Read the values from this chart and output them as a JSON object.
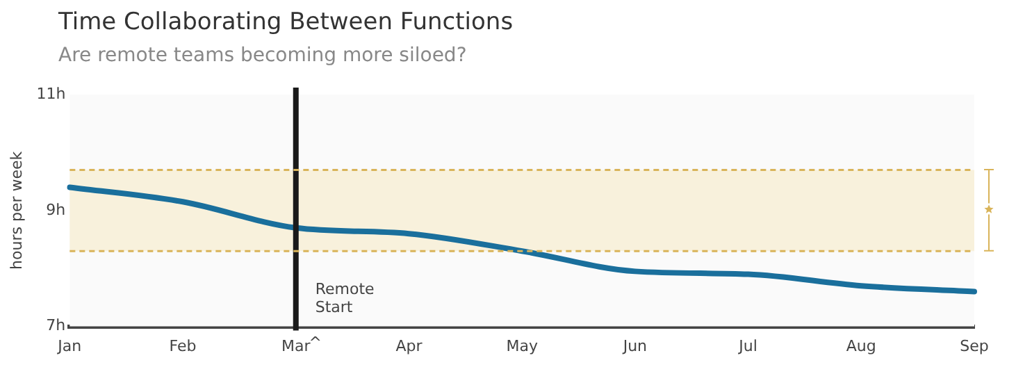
{
  "chart_data": {
    "type": "line",
    "title": "Time Collaborating Between Functions",
    "subtitle": "Are remote teams becoming more siloed?",
    "ylabel": "hours per week",
    "categories": [
      "Jan",
      "Feb",
      "Mar",
      "Apr",
      "May",
      "Jun",
      "Jul",
      "Aug",
      "Sep"
    ],
    "series": [
      {
        "color": "#1a6f9c",
        "values": [
          9.4,
          9.15,
          8.7,
          8.6,
          8.3,
          7.95,
          7.9,
          7.7,
          7.6
        ]
      }
    ],
    "ylim": [
      7,
      11
    ],
    "yticks": [
      {
        "value": 7,
        "label": "7h"
      },
      {
        "value": 9,
        "label": "9h"
      },
      {
        "value": 11,
        "label": "11h"
      }
    ],
    "ref_lines": [
      {
        "axis": "x",
        "value": "Mar",
        "label": "Remote Start",
        "color": "#1a1a1a"
      },
      {
        "axis": "y",
        "value": 8.3,
        "color": "#d9b45a",
        "line_style": "dashed"
      },
      {
        "axis": "y",
        "value": 9.7,
        "color": "#d9b45a",
        "line_style": "dashed"
      }
    ],
    "bands": [
      {
        "axis": "y",
        "from": 8.3,
        "to": 9.7,
        "color": "#f8f1dc"
      }
    ],
    "annotations": [
      "^"
    ],
    "grid": false,
    "legend": false,
    "marker": "none",
    "line_style": "solid"
  }
}
